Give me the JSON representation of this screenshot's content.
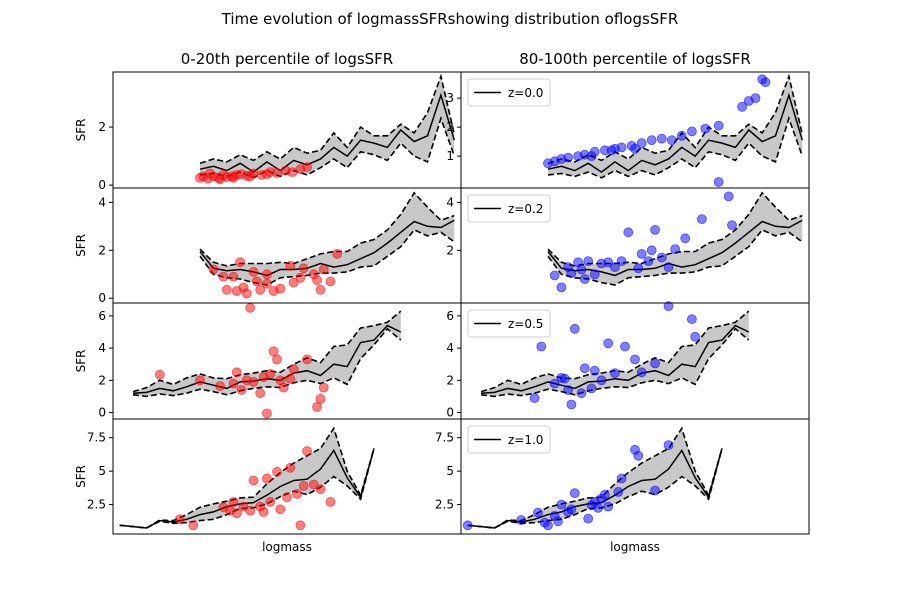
{
  "suptitle": "Time evolution of logmassSFRshowing distribution oflogsSFR",
  "col_titles": [
    "0-20th percentile of logsSFR",
    "80-100th percentile of logsSFR"
  ],
  "xlabel": "logmass",
  "ylabel": "SFR",
  "colors": {
    "left_points": "#ff0000",
    "right_points": "#0000ff",
    "band_fill": "#c8c8c8",
    "line": "#000000"
  },
  "chart_data": [
    {
      "type": "line",
      "row": 0,
      "redshift_label": "z=0.0",
      "ylim": [
        -0.1,
        3.9
      ],
      "left_yticks": [
        0,
        2
      ],
      "right_yticks": [
        1,
        2,
        3
      ],
      "median": {
        "x": [
          1.0,
          1.2,
          1.4,
          1.6,
          1.8,
          2.0,
          2.2,
          2.4,
          2.6,
          2.8,
          3.0,
          3.2,
          3.4,
          3.6,
          3.8,
          4.0,
          4.2,
          4.4,
          4.6,
          4.8
        ],
        "y": [
          0.55,
          0.65,
          0.5,
          0.75,
          0.45,
          0.8,
          0.5,
          0.85,
          0.7,
          0.9,
          1.3,
          1.0,
          1.55,
          1.45,
          1.3,
          1.9,
          1.5,
          1.7,
          3.1,
          1.55
        ]
      },
      "upper": [
        0.75,
        0.9,
        0.8,
        1.05,
        0.85,
        1.15,
        0.9,
        1.3,
        1.1,
        1.2,
        1.8,
        1.3,
        2.0,
        1.7,
        1.7,
        2.1,
        1.8,
        2.5,
        3.75,
        1.75
      ],
      "lower": [
        0.35,
        0.4,
        0.3,
        0.45,
        0.25,
        0.5,
        0.3,
        0.5,
        0.35,
        0.6,
        0.9,
        0.6,
        1.15,
        1.05,
        0.85,
        1.45,
        1.0,
        0.8,
        2.3,
        1.0
      ],
      "scatter_left": [
        [
          1.0,
          0.25
        ],
        [
          1.05,
          0.3
        ],
        [
          1.12,
          0.22
        ],
        [
          1.2,
          0.3
        ],
        [
          1.28,
          0.25
        ],
        [
          1.35,
          0.35
        ],
        [
          1.4,
          0.28
        ],
        [
          1.48,
          0.3
        ],
        [
          1.55,
          0.35
        ],
        [
          1.62,
          0.38
        ],
        [
          1.7,
          0.32
        ],
        [
          1.8,
          0.4
        ],
        [
          1.92,
          0.35
        ],
        [
          2.05,
          0.45
        ],
        [
          2.15,
          0.42
        ],
        [
          2.28,
          0.5
        ],
        [
          2.38,
          0.45
        ],
        [
          2.5,
          0.55
        ],
        [
          2.6,
          0.62
        ],
        [
          1.15,
          0.4
        ],
        [
          1.3,
          0.2
        ],
        [
          1.5,
          0.25
        ],
        [
          1.75,
          0.3
        ],
        [
          2.0,
          0.38
        ]
      ],
      "scatter_right": [
        [
          1.0,
          0.75
        ],
        [
          1.1,
          0.82
        ],
        [
          1.2,
          0.9
        ],
        [
          1.3,
          0.95
        ],
        [
          1.45,
          1.0
        ],
        [
          1.55,
          1.05
        ],
        [
          1.7,
          1.15
        ],
        [
          1.85,
          1.2
        ],
        [
          2.0,
          1.25
        ],
        [
          2.1,
          1.3
        ],
        [
          2.25,
          1.35
        ],
        [
          2.4,
          1.45
        ],
        [
          2.55,
          1.55
        ],
        [
          2.7,
          1.6
        ],
        [
          2.85,
          1.55
        ],
        [
          3.0,
          1.7
        ],
        [
          3.15,
          1.85
        ],
        [
          3.35,
          1.95
        ],
        [
          3.55,
          2.05
        ],
        [
          3.9,
          2.7
        ],
        [
          4.0,
          2.9
        ],
        [
          4.1,
          3.0
        ],
        [
          4.2,
          3.65
        ],
        [
          4.25,
          3.55
        ],
        [
          1.65,
          1.0
        ],
        [
          1.95,
          1.2
        ],
        [
          2.3,
          1.25
        ]
      ]
    },
    {
      "type": "line",
      "row": 1,
      "redshift_label": "z=0.2",
      "ylim": [
        -0.2,
        4.6
      ],
      "left_yticks": [
        0,
        2,
        4
      ],
      "right_yticks": [
        2,
        4
      ],
      "median": {
        "x": [
          1.0,
          1.2,
          1.4,
          1.6,
          1.8,
          2.0,
          2.2,
          2.4,
          2.6,
          2.8,
          3.0,
          3.2,
          3.4,
          3.6,
          3.8,
          4.0,
          4.2,
          4.4,
          4.6,
          4.8
        ],
        "y": [
          1.95,
          1.25,
          1.15,
          1.2,
          1.1,
          0.95,
          1.2,
          1.2,
          1.25,
          1.45,
          1.3,
          1.4,
          1.65,
          1.9,
          2.3,
          2.75,
          3.2,
          3.0,
          2.95,
          3.25
        ]
      },
      "upper": [
        2.05,
        1.5,
        1.35,
        1.45,
        1.45,
        1.45,
        1.5,
        1.45,
        1.65,
        1.85,
        1.95,
        1.95,
        2.3,
        2.45,
        2.85,
        3.5,
        4.4,
        3.8,
        3.25,
        3.45
      ],
      "lower": [
        1.75,
        1.0,
        0.85,
        0.8,
        0.65,
        0.55,
        0.85,
        0.9,
        0.95,
        1.05,
        1.05,
        1.1,
        1.3,
        1.35,
        1.75,
        2.15,
        2.85,
        2.6,
        2.75,
        2.35
      ],
      "scatter_left": [
        [
          1.2,
          1.2
        ],
        [
          1.35,
          0.9
        ],
        [
          1.4,
          0.35
        ],
        [
          1.55,
          0.3
        ],
        [
          1.6,
          1.5
        ],
        [
          1.65,
          0.45
        ],
        [
          1.7,
          0.2
        ],
        [
          1.8,
          1.1
        ],
        [
          1.85,
          0.7
        ],
        [
          1.9,
          0.35
        ],
        [
          2.0,
          0.6
        ],
        [
          2.1,
          0.3
        ],
        [
          2.2,
          0.4
        ],
        [
          2.35,
          1.35
        ],
        [
          2.4,
          0.65
        ],
        [
          2.5,
          0.85
        ],
        [
          2.55,
          1.25
        ],
        [
          2.7,
          1.0
        ],
        [
          2.75,
          0.75
        ],
        [
          2.8,
          0.35
        ],
        [
          2.85,
          1.2
        ],
        [
          2.95,
          0.7
        ],
        [
          3.05,
          1.85
        ],
        [
          1.5,
          0.9
        ],
        [
          2.0,
          1.0
        ]
      ],
      "scatter_right": [
        [
          1.1,
          0.95
        ],
        [
          1.2,
          0.45
        ],
        [
          1.3,
          1.3
        ],
        [
          1.35,
          1.05
        ],
        [
          1.45,
          1.5
        ],
        [
          1.5,
          1.2
        ],
        [
          1.6,
          1.55
        ],
        [
          1.7,
          1.0
        ],
        [
          1.8,
          1.45
        ],
        [
          1.9,
          1.5
        ],
        [
          2.0,
          1.3
        ],
        [
          2.1,
          1.55
        ],
        [
          2.2,
          2.75
        ],
        [
          2.35,
          1.25
        ],
        [
          2.5,
          1.55
        ],
        [
          2.55,
          2.0
        ],
        [
          2.6,
          2.85
        ],
        [
          2.7,
          1.7
        ],
        [
          2.8,
          1.3
        ],
        [
          2.9,
          2.05
        ],
        [
          3.05,
          2.5
        ],
        [
          3.3,
          3.3
        ],
        [
          3.55,
          4.85
        ],
        [
          3.7,
          4.25
        ],
        [
          3.75,
          3.05
        ],
        [
          1.55,
          0.8
        ],
        [
          2.4,
          1.85
        ]
      ]
    },
    {
      "type": "line",
      "row": 2,
      "redshift_label": "z=0.5",
      "ylim": [
        -0.4,
        6.8
      ],
      "left_yticks": [
        0,
        2,
        4,
        6
      ],
      "right_yticks": [
        0,
        2,
        4,
        6
      ],
      "median": {
        "x": [
          0.0,
          0.2,
          0.4,
          0.6,
          0.8,
          1.0,
          1.2,
          1.4,
          1.6,
          1.8,
          2.0,
          2.2,
          2.4,
          2.6,
          2.8,
          3.0,
          3.2,
          3.4,
          3.6,
          3.8,
          4.0
        ],
        "y": [
          1.2,
          1.25,
          1.5,
          1.35,
          1.6,
          1.9,
          1.7,
          1.5,
          1.9,
          1.95,
          2.1,
          2.0,
          2.45,
          2.6,
          2.3,
          3.0,
          2.85,
          4.35,
          4.5,
          5.4,
          5.0
        ]
      },
      "upper": [
        1.3,
        1.55,
        2.0,
        1.75,
        2.15,
        2.4,
        2.15,
        2.1,
        2.35,
        2.45,
        2.6,
        2.5,
        3.0,
        3.4,
        3.1,
        4.1,
        4.2,
        5.25,
        5.4,
        5.6,
        6.3
      ],
      "lower": [
        1.1,
        1.0,
        1.15,
        1.05,
        1.2,
        1.45,
        1.3,
        1.1,
        1.35,
        1.5,
        1.6,
        1.55,
        1.85,
        2.0,
        1.8,
        2.15,
        1.75,
        3.35,
        4.2,
        5.2,
        4.5
      ],
      "scatter_left": [
        [
          0.4,
          2.35
        ],
        [
          1.0,
          2.0
        ],
        [
          1.3,
          1.65
        ],
        [
          1.55,
          2.5
        ],
        [
          1.62,
          1.4
        ],
        [
          1.7,
          2.0
        ],
        [
          1.75,
          6.5
        ],
        [
          1.8,
          1.9
        ],
        [
          1.9,
          1.2
        ],
        [
          1.95,
          2.2
        ],
        [
          2.0,
          -0.05
        ],
        [
          2.05,
          2.4
        ],
        [
          2.1,
          3.8
        ],
        [
          2.15,
          3.3
        ],
        [
          2.25,
          1.55
        ],
        [
          2.35,
          2.1
        ],
        [
          2.4,
          2.7
        ],
        [
          2.6,
          3.3
        ],
        [
          2.75,
          0.35
        ],
        [
          2.8,
          0.85
        ],
        [
          2.85,
          1.55
        ],
        [
          1.5,
          1.8
        ],
        [
          2.2,
          2.0
        ]
      ],
      "scatter_right": [
        [
          0.8,
          0.9
        ],
        [
          0.9,
          4.1
        ],
        [
          1.1,
          1.8
        ],
        [
          1.2,
          2.15
        ],
        [
          1.3,
          1.4
        ],
        [
          1.35,
          0.5
        ],
        [
          1.4,
          5.2
        ],
        [
          1.5,
          1.2
        ],
        [
          1.55,
          2.75
        ],
        [
          1.65,
          1.5
        ],
        [
          1.8,
          2.0
        ],
        [
          1.9,
          4.3
        ],
        [
          2.0,
          2.45
        ],
        [
          2.15,
          4.1
        ],
        [
          2.3,
          3.3
        ],
        [
          2.4,
          2.5
        ],
        [
          2.6,
          3.05
        ],
        [
          2.8,
          6.6
        ],
        [
          3.15,
          5.8
        ],
        [
          3.2,
          4.7
        ],
        [
          1.25,
          2.1
        ],
        [
          1.7,
          2.6
        ]
      ]
    },
    {
      "type": "line",
      "row": 3,
      "redshift_label": "z=1.0",
      "ylim": [
        0.3,
        8.9
      ],
      "left_yticks": [
        2.5,
        5.0,
        7.5
      ],
      "right_yticks": [
        2.5,
        5.0,
        7.5
      ],
      "median": {
        "x": [
          -0.2,
          0.0,
          0.2,
          0.4,
          0.6,
          0.8,
          1.0,
          1.2,
          1.4,
          1.6,
          1.8,
          2.0,
          2.2,
          2.4,
          2.6,
          2.8,
          3.0,
          3.2,
          3.4,
          3.6
        ],
        "y": [
          0.95,
          0.85,
          0.75,
          1.3,
          1.2,
          1.4,
          1.75,
          1.95,
          2.35,
          2.55,
          2.65,
          3.2,
          3.85,
          4.3,
          4.4,
          5.15,
          6.55,
          4.5,
          3.05,
          6.7
        ]
      },
      "upper": [
        0.95,
        0.85,
        0.75,
        1.35,
        1.3,
        1.75,
        2.3,
        2.55,
        2.75,
        3.0,
        3.05,
        4.05,
        4.9,
        5.6,
        6.15,
        6.7,
        8.2,
        5.0,
        3.2,
        6.7
      ],
      "lower": [
        0.95,
        0.85,
        0.75,
        1.25,
        1.1,
        1.15,
        1.3,
        1.4,
        1.75,
        2.2,
        2.25,
        2.55,
        3.1,
        3.5,
        3.25,
        3.8,
        4.6,
        3.9,
        2.9,
        6.7
      ]
    }
  ],
  "row_scatter_bottom": {
    "scatter_left": [
      [
        0.7,
        1.4
      ],
      [
        0.9,
        0.95
      ],
      [
        1.35,
        2.3
      ],
      [
        1.45,
        2.05
      ],
      [
        1.5,
        2.7
      ],
      [
        1.55,
        1.85
      ],
      [
        1.65,
        2.35
      ],
      [
        1.75,
        2.05
      ],
      [
        1.8,
        4.3
      ],
      [
        1.9,
        2.35
      ],
      [
        1.95,
        1.95
      ],
      [
        2.0,
        4.45
      ],
      [
        2.05,
        2.7
      ],
      [
        2.15,
        4.95
      ],
      [
        2.2,
        2.15
      ],
      [
        2.3,
        3.05
      ],
      [
        2.35,
        5.25
      ],
      [
        2.45,
        3.3
      ],
      [
        2.5,
        0.95
      ],
      [
        2.55,
        3.9
      ],
      [
        2.6,
        6.5
      ],
      [
        2.7,
        4.0
      ],
      [
        2.8,
        3.65
      ],
      [
        2.95,
        2.7
      ]
    ],
    "scatter_right": [
      [
        -0.2,
        0.95
      ],
      [
        0.6,
        1.35
      ],
      [
        0.85,
        1.9
      ],
      [
        0.95,
        1.15
      ],
      [
        1.0,
        0.95
      ],
      [
        1.1,
        1.65
      ],
      [
        1.15,
        1.25
      ],
      [
        1.2,
        2.5
      ],
      [
        1.3,
        1.95
      ],
      [
        1.4,
        3.35
      ],
      [
        1.6,
        1.45
      ],
      [
        1.65,
        2.45
      ],
      [
        1.75,
        2.25
      ],
      [
        1.8,
        2.95
      ],
      [
        1.85,
        3.25
      ],
      [
        1.9,
        2.35
      ],
      [
        2.05,
        3.45
      ],
      [
        2.1,
        4.45
      ],
      [
        2.3,
        6.6
      ],
      [
        2.35,
        6.15
      ],
      [
        2.6,
        3.55
      ],
      [
        2.8,
        6.95
      ],
      [
        1.35,
        2.15
      ],
      [
        1.7,
        2.7
      ]
    ]
  }
}
